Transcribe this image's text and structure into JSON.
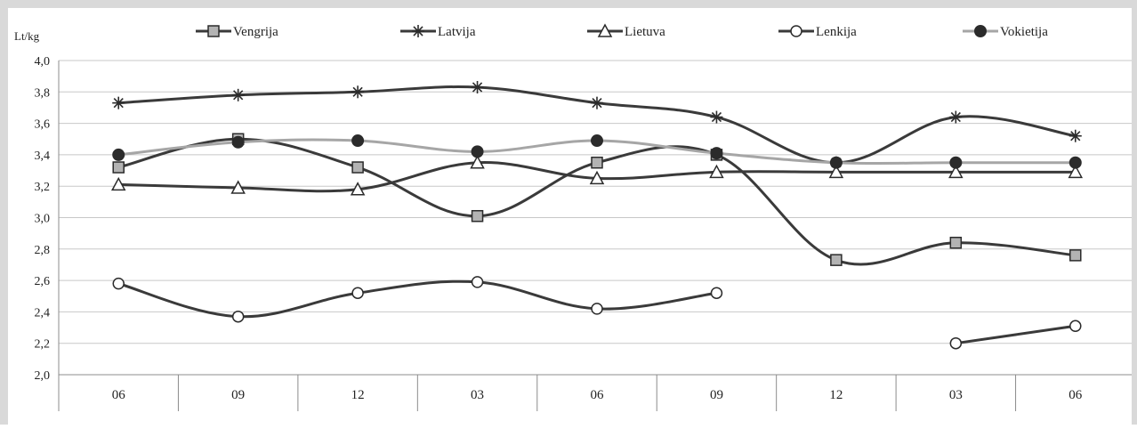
{
  "chart_data": {
    "type": "line",
    "ylabel": "Lt/kg",
    "ylim": [
      2.0,
      4.0
    ],
    "ytick_step": 0.2,
    "yticks": [
      "2,0",
      "2,2",
      "2,4",
      "2,6",
      "2,8",
      "3,0",
      "3,2",
      "3,4",
      "3,6",
      "3,8",
      "4,0"
    ],
    "categories": [
      "06",
      "09",
      "12",
      "03",
      "06",
      "09",
      "12",
      "03",
      "06"
    ],
    "legend_position": "top",
    "grid": true,
    "series": [
      {
        "name": "Vengrija",
        "marker": "square",
        "color": "#3a3a3a",
        "marker_fill": "#b3b3b3",
        "values": [
          3.32,
          3.5,
          3.32,
          3.01,
          3.35,
          3.4,
          2.73,
          2.84,
          2.76
        ]
      },
      {
        "name": "Latvija",
        "marker": "star",
        "color": "#3a3a3a",
        "marker_fill": "#3a3a3a",
        "values": [
          3.73,
          3.78,
          3.8,
          3.83,
          3.73,
          3.64,
          3.35,
          3.64,
          3.52
        ]
      },
      {
        "name": "Lietuva",
        "marker": "triangle",
        "color": "#3a3a3a",
        "marker_fill": "#ffffff",
        "values": [
          3.21,
          3.19,
          3.18,
          3.35,
          3.25,
          3.29,
          3.29,
          3.29,
          3.29
        ]
      },
      {
        "name": "Lenkija",
        "marker": "circle-open",
        "color": "#3a3a3a",
        "marker_fill": "#ffffff",
        "values": [
          2.58,
          2.37,
          2.52,
          2.59,
          2.42,
          2.52,
          null,
          2.2,
          2.31
        ]
      },
      {
        "name": "Vokietija",
        "marker": "circle-filled",
        "color": "#a6a6a6",
        "marker_fill": "#2b2b2b",
        "values": [
          3.4,
          3.48,
          3.49,
          3.42,
          3.49,
          3.41,
          3.35,
          3.35,
          3.35
        ]
      }
    ]
  }
}
